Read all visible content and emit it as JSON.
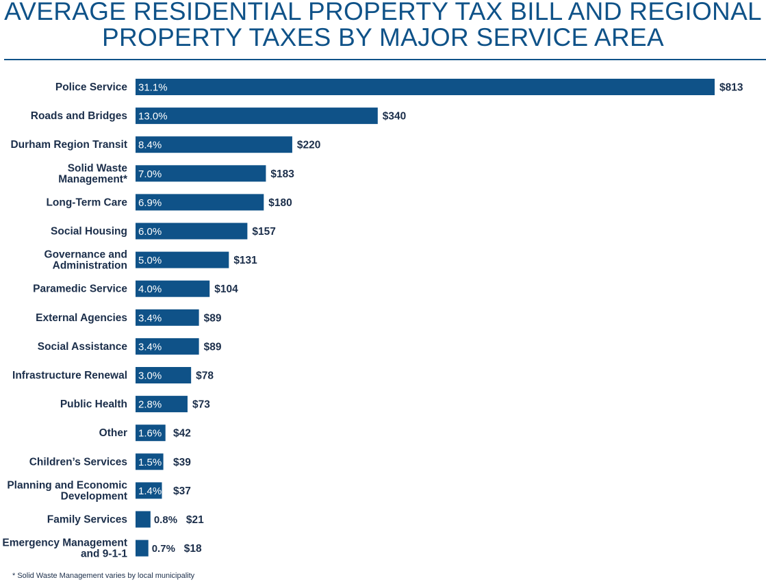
{
  "chart_data": {
    "type": "bar",
    "orientation": "horizontal",
    "title_lines": [
      "AVERAGE RESIDENTIAL PROPERTY TAX BILL AND REGIONAL",
      "PROPERTY TAXES BY MAJOR SERVICE AREA"
    ],
    "categories": [
      [
        "Police Service"
      ],
      [
        "Roads and Bridges"
      ],
      [
        "Durham Region Transit"
      ],
      [
        "Solid Waste",
        "Management*"
      ],
      [
        "Long-Term Care"
      ],
      [
        "Social Housing"
      ],
      [
        "Governance and",
        "Administration"
      ],
      [
        "Paramedic Service"
      ],
      [
        "External Agencies"
      ],
      [
        "Social Assistance"
      ],
      [
        "Infrastructure Renewal"
      ],
      [
        "Public Health"
      ],
      [
        "Other"
      ],
      [
        "Children’s Services"
      ],
      [
        "Planning and Economic",
        "Development"
      ],
      [
        "Family Services"
      ],
      [
        "Emergency Management",
        "and 9-1-1"
      ]
    ],
    "values": [
      813,
      340,
      220,
      183,
      180,
      157,
      131,
      104,
      89,
      89,
      78,
      73,
      42,
      39,
      37,
      21,
      18
    ],
    "value_labels": [
      "$813",
      "$340",
      "$220",
      "$183",
      "$180",
      "$157",
      "$131",
      "$104",
      "$89",
      "$89",
      "$78",
      "$73",
      "$42",
      "$39",
      "$37",
      "$21",
      "$18"
    ],
    "percent_labels": [
      "31.1%",
      "13.0%",
      "8.4%",
      "7.0%",
      "6.9%",
      "6.0%",
      "5.0%",
      "4.0%",
      "3.4%",
      "3.4%",
      "3.0%",
      "2.8%",
      "1.6%",
      "1.5%",
      "1.4%",
      "0.8%",
      "0.7%"
    ],
    "xlim": [
      0,
      813
    ],
    "grid": false,
    "legend": "none",
    "bar_color": "#0f5288",
    "label_color": "#1b2e4a"
  },
  "footnote": "* Solid Waste Management varies by local municipality"
}
